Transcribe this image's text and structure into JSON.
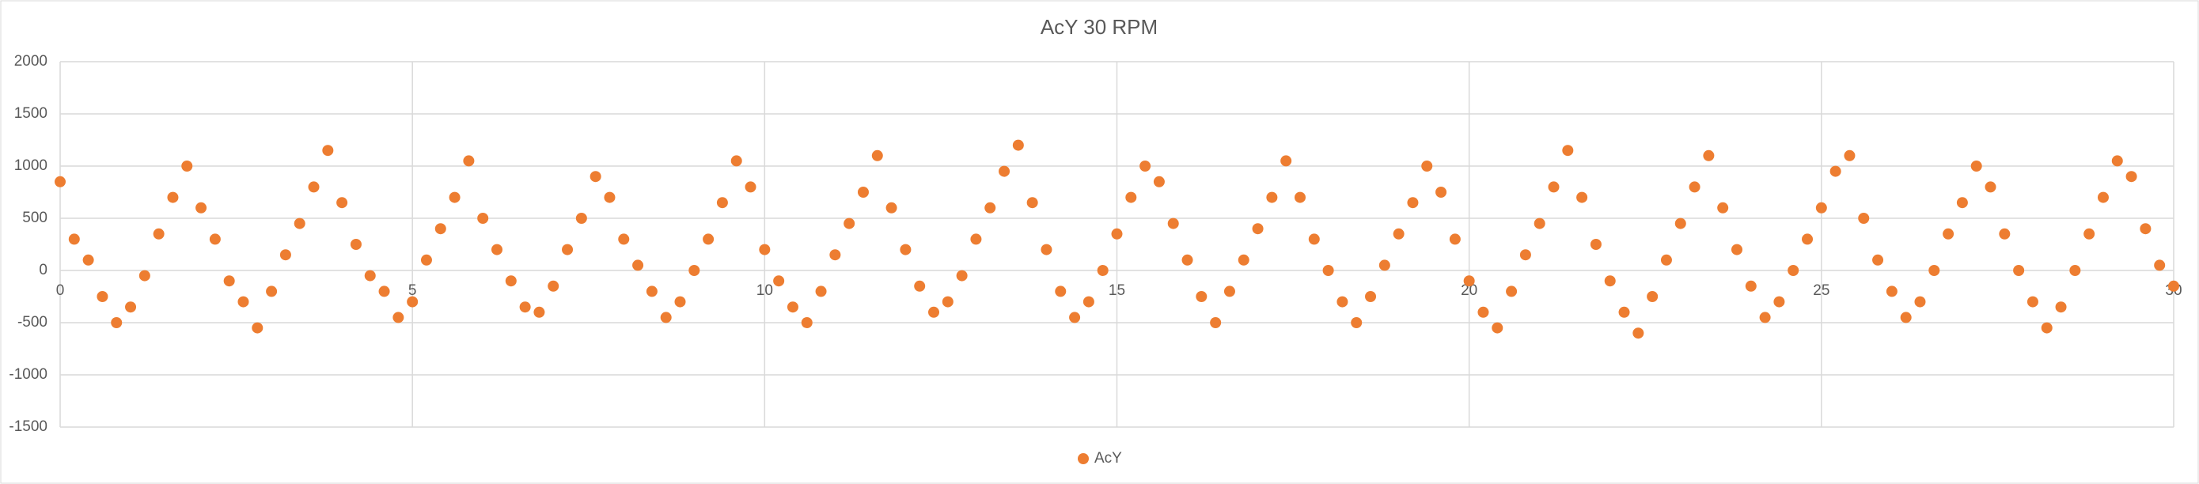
{
  "chart_data": {
    "type": "scatter",
    "title": "AcY 30 RPM",
    "x": [
      0,
      0.2,
      0.4,
      0.6,
      0.8,
      1,
      1.2,
      1.4,
      1.6,
      1.8,
      2,
      2.2,
      2.4,
      2.6,
      2.8,
      3,
      3.2,
      3.4,
      3.6,
      3.8,
      4,
      4.2,
      4.4,
      4.6,
      4.8,
      5,
      5.2,
      5.4,
      5.6,
      5.8,
      6,
      6.2,
      6.4,
      6.6,
      6.8,
      7,
      7.2,
      7.4,
      7.6,
      7.8,
      8,
      8.2,
      8.4,
      8.6,
      8.8,
      9,
      9.2,
      9.4,
      9.6,
      9.8,
      10,
      10.2,
      10.4,
      10.6,
      10.8,
      11,
      11.2,
      11.4,
      11.6,
      11.8,
      12,
      12.2,
      12.4,
      12.6,
      12.8,
      13,
      13.2,
      13.4,
      13.6,
      13.8,
      14,
      14.2,
      14.4,
      14.6,
      14.8,
      15,
      15.2,
      15.4,
      15.6,
      15.8,
      16,
      16.2,
      16.4,
      16.6,
      16.8,
      17,
      17.2,
      17.4,
      17.6,
      17.8,
      18,
      18.2,
      18.4,
      18.6,
      18.8,
      19,
      19.2,
      19.4,
      19.6,
      19.8,
      20,
      20.2,
      20.4,
      20.6,
      20.8,
      21,
      21.2,
      21.4,
      21.6,
      21.8,
      22,
      22.2,
      22.4,
      22.6,
      22.8,
      23,
      23.2,
      23.4,
      23.6,
      23.8,
      24,
      24.2,
      24.4,
      24.6,
      24.8,
      25,
      25.2,
      25.4,
      25.6,
      25.8,
      26,
      26.2,
      26.4,
      26.6,
      26.8,
      27,
      27.2,
      27.4,
      27.6,
      27.8,
      28,
      28.2,
      28.4,
      28.6,
      28.8,
      29,
      29.2,
      29.4,
      29.6,
      29.8,
      30
    ],
    "series": [
      {
        "name": "AcY",
        "color": "#ED7D31",
        "values": [
          850,
          300,
          100,
          -250,
          -500,
          -350,
          -50,
          350,
          700,
          1000,
          600,
          300,
          -100,
          -300,
          -550,
          -200,
          150,
          450,
          800,
          1150,
          650,
          250,
          -50,
          -200,
          -450,
          -300,
          100,
          400,
          700,
          1050,
          500,
          200,
          -100,
          -350,
          -400,
          -150,
          200,
          500,
          900,
          700,
          300,
          50,
          -200,
          -450,
          -300,
          0,
          300,
          650,
          1050,
          800,
          200,
          -100,
          -350,
          -500,
          -200,
          150,
          450,
          750,
          1100,
          600,
          200,
          -150,
          -400,
          -300,
          -50,
          300,
          600,
          950,
          1200,
          650,
          200,
          -200,
          -450,
          -300,
          0,
          350,
          700,
          1000,
          850,
          450,
          100,
          -250,
          -500,
          -200,
          100,
          400,
          700,
          1050,
          700,
          300,
          0,
          -300,
          -500,
          -250,
          50,
          350,
          650,
          1000,
          750,
          300,
          -100,
          -400,
          -550,
          -200,
          150,
          450,
          800,
          1150,
          700,
          250,
          -100,
          -400,
          -600,
          -250,
          100,
          450,
          800,
          1100,
          600,
          200,
          -150,
          -450,
          -300,
          0,
          300,
          600,
          950,
          1100,
          500,
          100,
          -200,
          -450,
          -300,
          0,
          350,
          650,
          1000,
          800,
          350,
          0,
          -300,
          -550,
          -350,
          0,
          350,
          700,
          1050,
          900,
          400,
          50,
          -150
        ]
      }
    ],
    "xlim": [
      0,
      30
    ],
    "xticks": [
      0,
      5,
      10,
      15,
      20,
      25,
      30
    ],
    "ylim": [
      -1500,
      2000
    ],
    "yticks": [
      -1500,
      -1000,
      -500,
      0,
      500,
      1000,
      1500,
      2000
    ],
    "grid": true,
    "legend": "bottom"
  }
}
